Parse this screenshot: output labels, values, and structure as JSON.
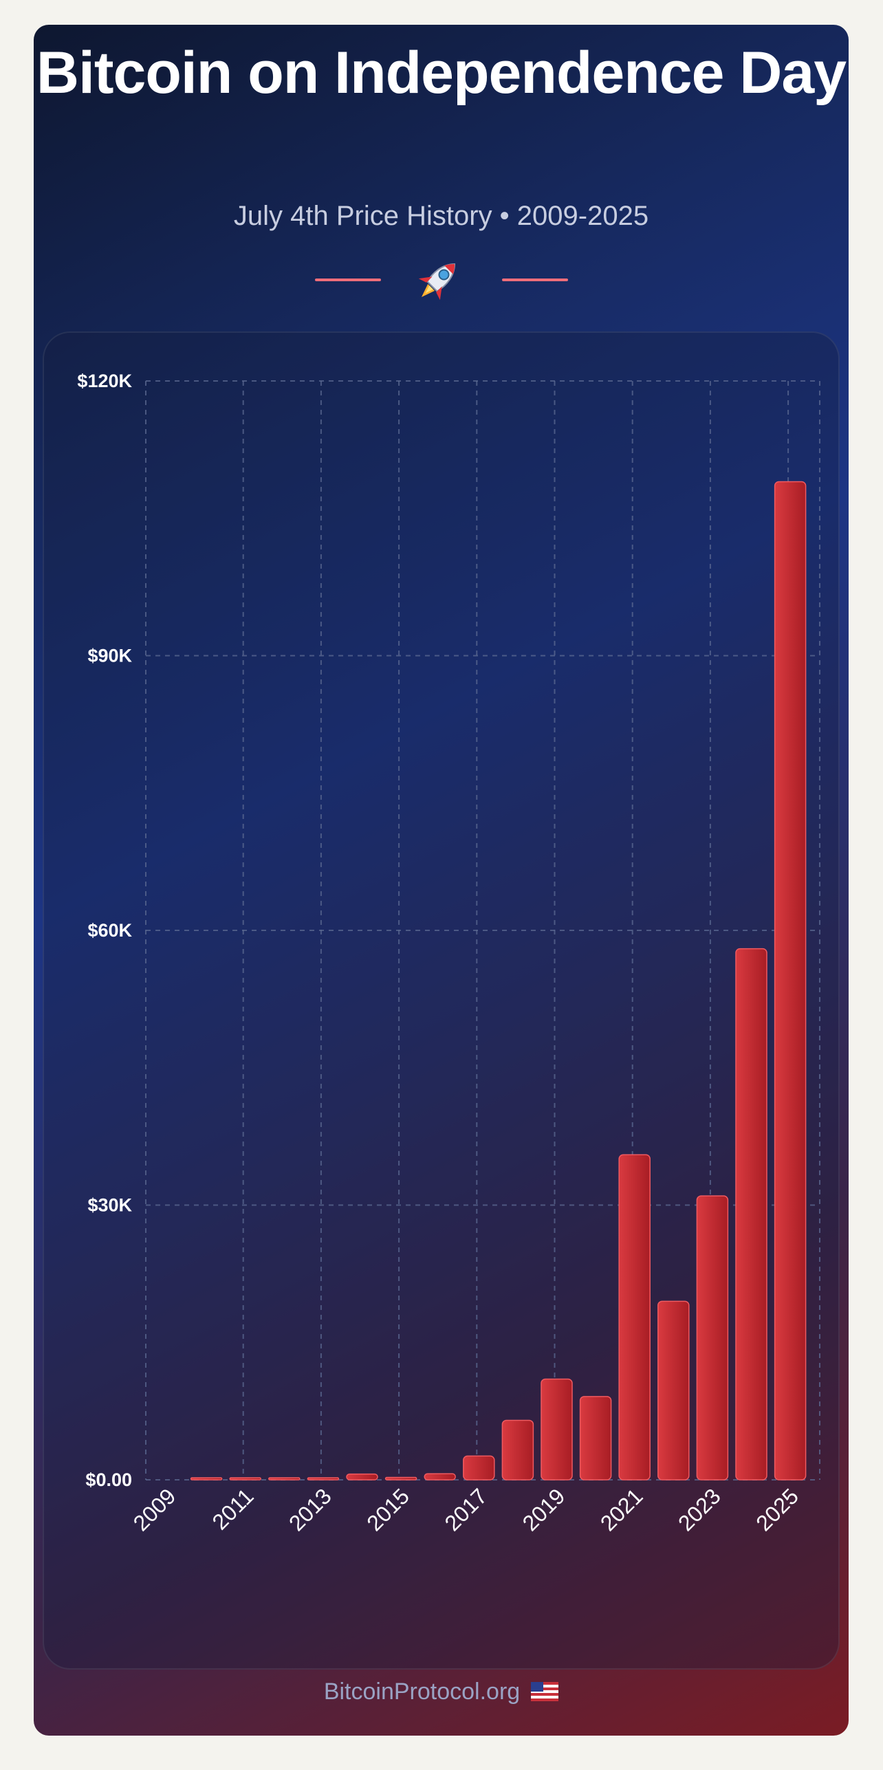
{
  "header": {
    "title": "Bitcoin on Independence Day",
    "subtitle": "July 4th Price History • 2009-2025",
    "rocket_icon": "rocket-icon",
    "accent_color": "#ef6e7a"
  },
  "footer": {
    "site": "BitcoinProtocol.org",
    "flag_icon": "us-flag-icon"
  },
  "colors": {
    "bar": "#d93a40",
    "bar_dark": "#a81d24",
    "grid": "#5c6a92",
    "text": "#ffffff"
  },
  "chart_data": {
    "type": "bar",
    "title": "Bitcoin on Independence Day",
    "subtitle": "July 4th Price History • 2009-2025",
    "xlabel": "",
    "ylabel": "",
    "categories": [
      "2009",
      "2010",
      "2011",
      "2012",
      "2013",
      "2014",
      "2015",
      "2016",
      "2017",
      "2018",
      "2019",
      "2020",
      "2021",
      "2022",
      "2023",
      "2024",
      "2025"
    ],
    "values": [
      0,
      0.05,
      15,
      6.7,
      77,
      630,
      260,
      670,
      2600,
      6500,
      11000,
      9100,
      35500,
      19500,
      31000,
      58000,
      109000
    ],
    "x_tick_labels": [
      "2009",
      "2011",
      "2013",
      "2015",
      "2017",
      "2019",
      "2021",
      "2023",
      "2025"
    ],
    "y_tick_labels": [
      "$0.00",
      "$30K",
      "$60K",
      "$90K",
      "$120K"
    ],
    "y_ticks": [
      0,
      30000,
      60000,
      90000,
      120000
    ],
    "ylim": [
      0,
      120000
    ],
    "grid": true,
    "legend": "none"
  }
}
